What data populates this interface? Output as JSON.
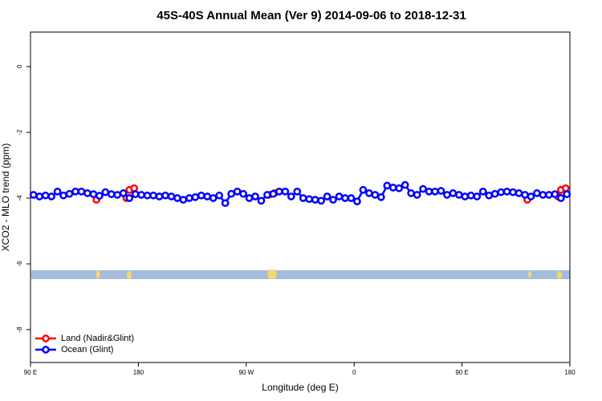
{
  "chart_data": {
    "type": "line",
    "title": "45S-40S Annual Mean (Ver 9)   2014-09-06 to 2018-12-31",
    "x_label": "Longitude (deg E)",
    "y_label": "XCO2 - MLO trend (ppm)",
    "xlim": [
      90,
      540
    ],
    "xticks": [
      {
        "value": 90,
        "label": "90 E"
      },
      {
        "value": 180,
        "label": "180"
      },
      {
        "value": 270,
        "label": "90 W"
      },
      {
        "value": 360,
        "label": "0"
      },
      {
        "value": 450,
        "label": "90 E"
      },
      {
        "value": 540,
        "label": "180"
      }
    ],
    "ylim": [
      -9,
      1.05
    ],
    "yticks": [
      0,
      -2,
      -4,
      -6,
      -8
    ],
    "legend": "bottom-left",
    "series": [
      {
        "name": "Land (Nadir&Glint)",
        "color": "#ff0000",
        "x": [
          145,
          170,
          172.5,
          176.5,
          289,
          293.5,
          504.5,
          530,
          532.5,
          536.5
        ],
        "values": [
          -4.05,
          -4.0,
          -3.75,
          -3.7,
          -3.9,
          -3.85,
          -4.05,
          -3.95,
          -3.75,
          -3.7
        ]
      },
      {
        "name": "Ocean (Glint)",
        "color": "#0000ff",
        "x": [
          92.5,
          97.5,
          102.5,
          107.5,
          112.5,
          117.5,
          122.5,
          127.5,
          132.5,
          137.5,
          142.5,
          147.5,
          152.5,
          157.5,
          162.5,
          167.5,
          172.5,
          177.5,
          182.5,
          187.5,
          192.5,
          197.5,
          202.5,
          207.5,
          212.5,
          217.5,
          222.5,
          227.5,
          232.5,
          237.5,
          242.5,
          247.5,
          252.5,
          257.5,
          262.5,
          267.5,
          272.5,
          277.5,
          282.5,
          287.5,
          292.5,
          297.5,
          302.5,
          307.5,
          312.5,
          317.5,
          322.5,
          327.5,
          332.5,
          337.5,
          342.5,
          347.5,
          352.5,
          357.5,
          362.5,
          367.5,
          372.5,
          377.5,
          382.5,
          387.5,
          392.5,
          397.5,
          402.5,
          407.5,
          412.5,
          417.5,
          422.5,
          427.5,
          432.5,
          437.5,
          442.5,
          447.5,
          452.5,
          457.5,
          462.5,
          467.5,
          472.5,
          477.5,
          482.5,
          487.5,
          492.5,
          497.5,
          502.5,
          507.5,
          512.5,
          517.5,
          522.5,
          527.5,
          532.5,
          537.5
        ],
        "values": [
          -3.9,
          -3.95,
          -3.92,
          -3.95,
          -3.8,
          -3.92,
          -3.87,
          -3.8,
          -3.8,
          -3.85,
          -3.88,
          -3.93,
          -3.82,
          -3.88,
          -3.9,
          -3.85,
          -4.0,
          -3.88,
          -3.9,
          -3.92,
          -3.92,
          -3.95,
          -3.92,
          -3.95,
          -4.0,
          -4.05,
          -4.0,
          -3.97,
          -3.92,
          -3.95,
          -4.0,
          -3.92,
          -4.15,
          -3.87,
          -3.8,
          -3.87,
          -4.0,
          -3.95,
          -4.08,
          -3.9,
          -3.87,
          -3.8,
          -3.8,
          -3.95,
          -3.8,
          -4.0,
          -4.03,
          -4.05,
          -4.08,
          -3.95,
          -4.05,
          -3.95,
          -4.0,
          -4.0,
          -4.1,
          -3.75,
          -3.85,
          -3.9,
          -3.97,
          -3.62,
          -3.68,
          -3.7,
          -3.6,
          -3.85,
          -3.9,
          -3.72,
          -3.8,
          -3.8,
          -3.78,
          -3.9,
          -3.85,
          -3.9,
          -3.95,
          -3.92,
          -3.95,
          -3.8,
          -3.92,
          -3.87,
          -3.82,
          -3.8,
          -3.82,
          -3.85,
          -3.9,
          -3.95,
          -3.85,
          -3.9,
          -3.9,
          -3.88,
          -4.0,
          -3.88
        ]
      }
    ]
  }
}
